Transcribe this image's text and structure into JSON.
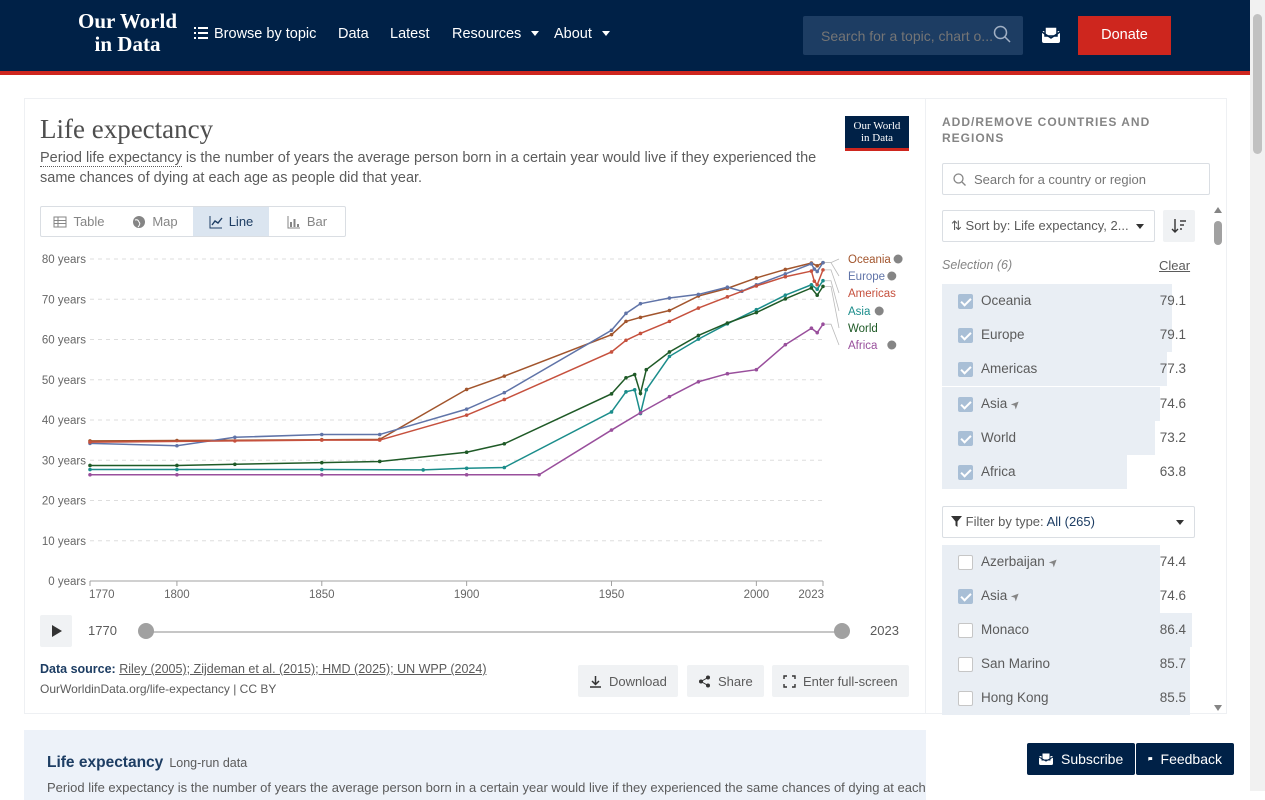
{
  "nav": {
    "logo_line1": "Our World",
    "logo_line2": "in Data",
    "browse": "Browse by topic",
    "data": "Data",
    "latest": "Latest",
    "resources": "Resources",
    "about": "About",
    "search_placeholder": "Search for a topic, chart o...",
    "donate": "Donate"
  },
  "chart_header": {
    "title": "Life expectancy",
    "subtitle_link": "Period life expectancy",
    "subtitle_rest": " is the number of years the average person born in a certain year would live if they experienced the same chances of dying at each age as people did that year.",
    "mini_logo_1": "Our World",
    "mini_logo_2": "in Data"
  },
  "tabs": [
    "Table",
    "Map",
    "Line",
    "Bar"
  ],
  "chart_data": {
    "type": "line",
    "ylabel": "",
    "ylim": [
      0,
      80
    ],
    "yticks": [
      "0 years",
      "10 years",
      "20 years",
      "30 years",
      "40 years",
      "50 years",
      "60 years",
      "70 years",
      "80 years"
    ],
    "xlim": [
      1770,
      2023
    ],
    "xticks": [
      "1770",
      "1800",
      "1850",
      "1900",
      "1950",
      "2000",
      "2023"
    ],
    "series": [
      {
        "name": "Oceania",
        "color": "#a2552d",
        "points": [
          [
            1770,
            34.8
          ],
          [
            1800,
            34.9
          ],
          [
            1850,
            35.1
          ],
          [
            1870,
            35.2
          ],
          [
            1900,
            47.6
          ],
          [
            1913,
            50.9
          ],
          [
            1950,
            61.2
          ],
          [
            1955,
            64.5
          ],
          [
            1960,
            65.5
          ],
          [
            1970,
            67.2
          ],
          [
            1980,
            70.8
          ],
          [
            1990,
            72.7
          ],
          [
            2000,
            75.3
          ],
          [
            2010,
            77.4
          ],
          [
            2019,
            79.0
          ],
          [
            2021,
            78.3
          ],
          [
            2023,
            79.1
          ]
        ]
      },
      {
        "name": "Europe",
        "color": "#6074a8",
        "points": [
          [
            1770,
            34.2
          ],
          [
            1800,
            33.6
          ],
          [
            1820,
            35.7
          ],
          [
            1850,
            36.4
          ],
          [
            1870,
            36.4
          ],
          [
            1900,
            42.7
          ],
          [
            1913,
            46.8
          ],
          [
            1950,
            62.3
          ],
          [
            1955,
            66.5
          ],
          [
            1960,
            68.9
          ],
          [
            1970,
            70.3
          ],
          [
            1980,
            71.2
          ],
          [
            1990,
            73.0
          ],
          [
            1995,
            72.0
          ],
          [
            2000,
            73.6
          ],
          [
            2010,
            76.3
          ],
          [
            2019,
            78.8
          ],
          [
            2020,
            77.5
          ],
          [
            2021,
            76.9
          ],
          [
            2023,
            79.1
          ]
        ]
      },
      {
        "name": "Americas",
        "color": "#c6513e",
        "points": [
          [
            1770,
            34.5
          ],
          [
            1820,
            34.8
          ],
          [
            1850,
            35.0
          ],
          [
            1870,
            35.0
          ],
          [
            1900,
            41.2
          ],
          [
            1913,
            45.1
          ],
          [
            1950,
            56.9
          ],
          [
            1955,
            59.8
          ],
          [
            1960,
            61.5
          ],
          [
            1970,
            64.5
          ],
          [
            1980,
            67.8
          ],
          [
            1990,
            70.6
          ],
          [
            2000,
            73.3
          ],
          [
            2010,
            75.6
          ],
          [
            2019,
            77.0
          ],
          [
            2020,
            74.5
          ],
          [
            2021,
            73.6
          ],
          [
            2023,
            77.3
          ]
        ]
      },
      {
        "name": "Asia",
        "color": "#1b8d8b",
        "points": [
          [
            1770,
            27.7
          ],
          [
            1800,
            27.7
          ],
          [
            1850,
            27.7
          ],
          [
            1885,
            27.6
          ],
          [
            1900,
            28.0
          ],
          [
            1913,
            28.2
          ],
          [
            1950,
            42.0
          ],
          [
            1955,
            47.0
          ],
          [
            1958,
            47.5
          ],
          [
            1960,
            41.6
          ],
          [
            1962,
            47.5
          ],
          [
            1970,
            55.8
          ],
          [
            1980,
            60.1
          ],
          [
            1990,
            63.9
          ],
          [
            2000,
            67.4
          ],
          [
            2010,
            71.0
          ],
          [
            2019,
            73.6
          ],
          [
            2021,
            72.5
          ],
          [
            2023,
            74.6
          ]
        ]
      },
      {
        "name": "World",
        "color": "#1f5a27",
        "points": [
          [
            1770,
            28.7
          ],
          [
            1800,
            28.7
          ],
          [
            1820,
            29.0
          ],
          [
            1850,
            29.4
          ],
          [
            1870,
            29.7
          ],
          [
            1900,
            32.0
          ],
          [
            1913,
            34.1
          ],
          [
            1950,
            46.5
          ],
          [
            1955,
            50.5
          ],
          [
            1958,
            51.3
          ],
          [
            1960,
            46.6
          ],
          [
            1962,
            52.5
          ],
          [
            1970,
            56.9
          ],
          [
            1980,
            61.0
          ],
          [
            1990,
            64.1
          ],
          [
            2000,
            66.7
          ],
          [
            2010,
            70.1
          ],
          [
            2019,
            72.8
          ],
          [
            2021,
            71.0
          ],
          [
            2023,
            73.2
          ]
        ]
      },
      {
        "name": "Africa",
        "color": "#994f9c",
        "points": [
          [
            1770,
            26.4
          ],
          [
            1800,
            26.4
          ],
          [
            1850,
            26.4
          ],
          [
            1900,
            26.4
          ],
          [
            1925,
            26.4
          ],
          [
            1950,
            37.5
          ],
          [
            1960,
            41.8
          ],
          [
            1970,
            45.8
          ],
          [
            1980,
            49.5
          ],
          [
            1990,
            51.5
          ],
          [
            2000,
            52.5
          ],
          [
            2010,
            58.7
          ],
          [
            2019,
            62.8
          ],
          [
            2021,
            61.7
          ],
          [
            2023,
            63.8
          ]
        ]
      }
    ]
  },
  "timeline": {
    "start": "1770",
    "end": "2023"
  },
  "footer": {
    "source_label": "Data source:",
    "source_links": "Riley (2005); Zijdeman et al. (2015); HMD (2025); UN WPP (2024)",
    "license": "OurWorldinData.org/life-expectancy | CC BY",
    "download": "Download",
    "share": "Share",
    "fullscreen": "Enter full-screen"
  },
  "sidebar": {
    "heading": "ADD/REMOVE COUNTRIES AND REGIONS",
    "search_placeholder": "Search for a country or region",
    "sort": "Sort by: Life expectancy, 2...",
    "selection": "Selection (6)",
    "clear": "Clear",
    "filter_label": "Filter by type:",
    "filter_value": "All (265)",
    "selected": [
      {
        "name": "Oceania",
        "value": "79.1",
        "arrow": false,
        "share": 0.92
      },
      {
        "name": "Europe",
        "value": "79.1",
        "arrow": false,
        "share": 0.92
      },
      {
        "name": "Americas",
        "value": "77.3",
        "arrow": false,
        "share": 0.9
      },
      {
        "name": "Asia",
        "value": "74.6",
        "arrow": true,
        "share": 0.87
      },
      {
        "name": "World",
        "value": "73.2",
        "arrow": false,
        "share": 0.85
      },
      {
        "name": "Africa",
        "value": "63.8",
        "arrow": false,
        "share": 0.74
      }
    ],
    "others": [
      {
        "name": "Azerbaijan",
        "value": "74.4",
        "arrow": true,
        "checked": false,
        "share": 0.87
      },
      {
        "name": "Asia",
        "value": "74.6",
        "arrow": true,
        "checked": true,
        "share": 0.87
      },
      {
        "name": "Monaco",
        "value": "86.4",
        "arrow": false,
        "checked": false,
        "share": 1.0
      },
      {
        "name": "San Marino",
        "value": "85.7",
        "arrow": false,
        "checked": false,
        "share": 0.99
      },
      {
        "name": "Hong Kong",
        "value": "85.5",
        "arrow": false,
        "checked": false,
        "share": 0.99
      }
    ]
  },
  "bottom": {
    "title": "Life expectancy",
    "subtitle": "Long-run data",
    "desc": "Period life expectancy is the number of years the average person born in a certain year would live if they experienced the same chances of dying at each"
  },
  "buttons": {
    "subscribe": "Subscribe",
    "feedback": "Feedback"
  }
}
